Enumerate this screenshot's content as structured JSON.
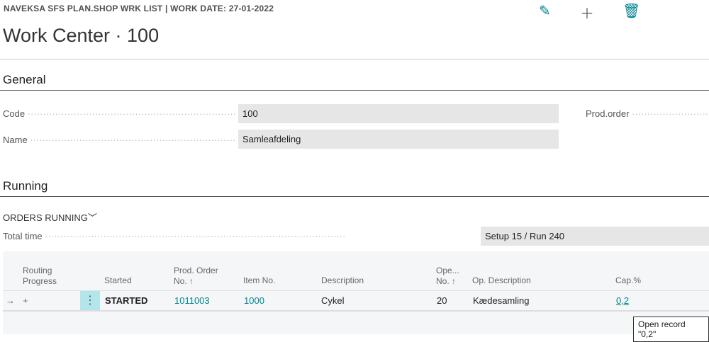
{
  "caption": "NAVEKSA SFS PLAN.SHOP WRK LIST | WORK DATE: 27-01-2022",
  "title": "Work Center · 100",
  "actions": {
    "edit_icon": "pencil-icon",
    "new_icon": "plus-icon",
    "delete_icon": "trash-icon"
  },
  "general": {
    "heading": "General",
    "code_label": "Code",
    "code_value": "100",
    "name_label": "Name",
    "name_value": "Samleafdeling",
    "prod_order_label": "Prod.order"
  },
  "running": {
    "heading": "Running",
    "orders_running": "ORDERS RUNNING",
    "total_time_label": "Total time",
    "total_time_value": "Setup 15  /  Run 240"
  },
  "table": {
    "headers": {
      "routing1": "Routing",
      "routing2": "Progress",
      "started": "Started",
      "prod1": "Prod. Order",
      "prod2": "No. ↑",
      "item": "Item No.",
      "desc": "Description",
      "ope1": "Ope...",
      "ope2": "No. ↑",
      "opdesc": "Op. Description",
      "cap": "Cap.%"
    },
    "row": {
      "started": "STARTED",
      "prod_order_no": "1011003",
      "item_no": "1000",
      "description": "Cykel",
      "op_no": "20",
      "op_description": "Kædesamling",
      "cap": "0,2"
    }
  },
  "tooltip": "Open record \"0,2\"",
  "colors": {
    "accent": "#00838f"
  }
}
